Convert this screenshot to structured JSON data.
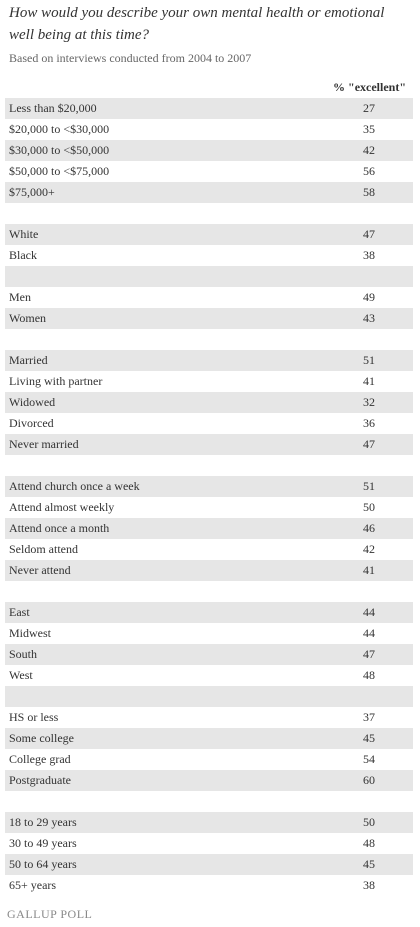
{
  "title": "How would you describe your own mental health or emotional well being at this time?",
  "subtitle": "Based on interviews conducted from 2004 to 2007",
  "column_header": "% \"excellent\"",
  "groups": [
    {
      "rows": [
        {
          "label": "Less than $20,000",
          "value": 27
        },
        {
          "label": "$20,000 to <$30,000",
          "value": 35
        },
        {
          "label": "$30,000 to <$50,000",
          "value": 42
        },
        {
          "label": "$50,000 to <$75,000",
          "value": 56
        },
        {
          "label": "$75,000+",
          "value": 58
        }
      ]
    },
    {
      "rows": [
        {
          "label": "White",
          "value": 47
        },
        {
          "label": "Black",
          "value": 38
        }
      ]
    },
    {
      "rows": [
        {
          "label": "Men",
          "value": 49
        },
        {
          "label": "Women",
          "value": 43
        }
      ]
    },
    {
      "rows": [
        {
          "label": "Married",
          "value": 51
        },
        {
          "label": "Living with partner",
          "value": 41
        },
        {
          "label": "Widowed",
          "value": 32
        },
        {
          "label": "Divorced",
          "value": 36
        },
        {
          "label": "Never married",
          "value": 47
        }
      ]
    },
    {
      "rows": [
        {
          "label": "Attend church once a week",
          "value": 51
        },
        {
          "label": "Attend almost weekly",
          "value": 50
        },
        {
          "label": "Attend once a month",
          "value": 46
        },
        {
          "label": "Seldom attend",
          "value": 42
        },
        {
          "label": "Never attend",
          "value": 41
        }
      ]
    },
    {
      "rows": [
        {
          "label": "East",
          "value": 44
        },
        {
          "label": "Midwest",
          "value": 44
        },
        {
          "label": "South",
          "value": 47
        },
        {
          "label": "West",
          "value": 48
        }
      ]
    },
    {
      "rows": [
        {
          "label": "HS or less",
          "value": 37
        },
        {
          "label": "Some college",
          "value": 45
        },
        {
          "label": "College grad",
          "value": 54
        },
        {
          "label": "Postgraduate",
          "value": 60
        }
      ]
    },
    {
      "rows": [
        {
          "label": "18 to 29 years",
          "value": 50
        },
        {
          "label": "30 to 49 years",
          "value": 48
        },
        {
          "label": "50 to 64 years",
          "value": 45
        },
        {
          "label": "65+ years",
          "value": 38
        }
      ]
    }
  ],
  "footer": "GALLUP POLL"
}
